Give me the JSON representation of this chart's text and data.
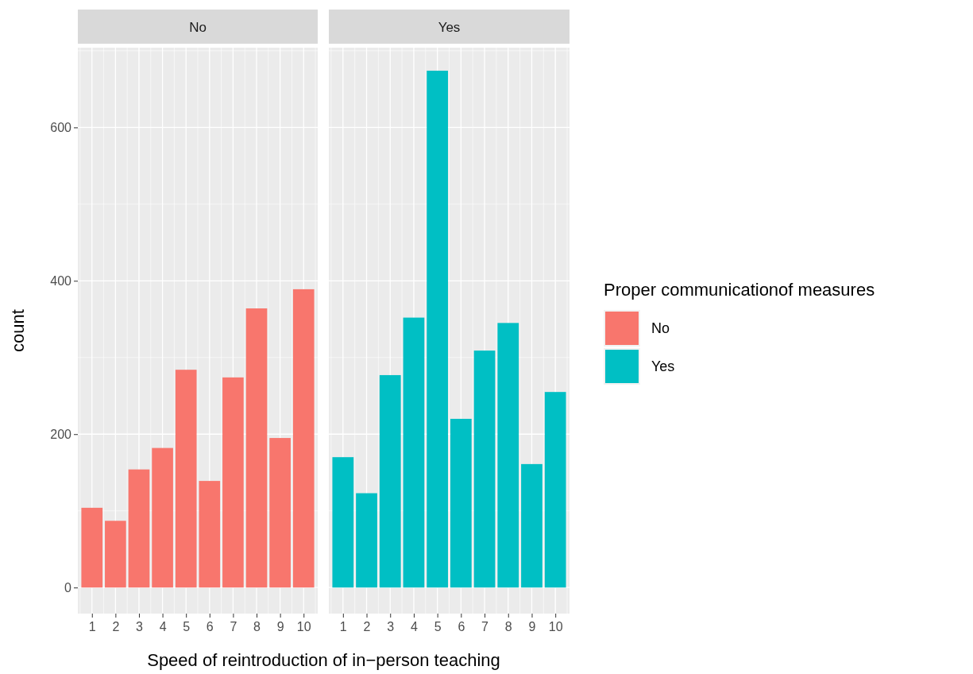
{
  "chart_data": [
    {
      "type": "bar",
      "title": "No",
      "xlabel": "Speed of reintroduction of in−person teaching",
      "ylabel": "count",
      "categories": [
        "1",
        "2",
        "3",
        "4",
        "5",
        "6",
        "7",
        "8",
        "9",
        "10"
      ],
      "series": [
        {
          "name": "No",
          "color": "#f8766d",
          "values": [
            104,
            87,
            154,
            182,
            284,
            139,
            274,
            364,
            195,
            389
          ]
        }
      ],
      "ylim": [
        -34,
        704
      ],
      "yticks": [
        0,
        200,
        400,
        600
      ],
      "grid": true,
      "legend": "right"
    },
    {
      "type": "bar",
      "title": "Yes",
      "legend_title": "Proper communicationof measures",
      "categories": [
        "1",
        "2",
        "3",
        "4",
        "5",
        "6",
        "7",
        "8",
        "9",
        "10"
      ],
      "series": [
        {
          "name": "Yes",
          "color": "#00bfc4",
          "values": [
            170,
            123,
            277,
            352,
            674,
            220,
            309,
            345,
            161,
            255
          ]
        }
      ],
      "ylim": [
        -34,
        704
      ],
      "yticks": [
        0,
        200,
        400,
        600
      ],
      "grid": true,
      "tick_labels": "x",
      "legend": "right"
    }
  ]
}
